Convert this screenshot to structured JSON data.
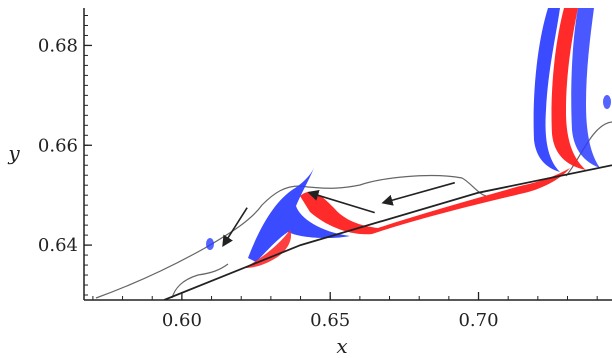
{
  "chart_data": {
    "type": "contour",
    "xlabel": "x",
    "ylabel": "y",
    "xlim": [
      0.567,
      0.745
    ],
    "ylim": [
      0.629,
      0.6875
    ],
    "x_ticks": [
      {
        "value": 0.6,
        "label": "0.60"
      },
      {
        "value": 0.65,
        "label": "0.65"
      },
      {
        "value": 0.7,
        "label": "0.70"
      }
    ],
    "y_ticks": [
      {
        "value": 0.64,
        "label": "0.64"
      },
      {
        "value": 0.66,
        "label": "0.66"
      },
      {
        "value": 0.68,
        "label": "0.68"
      }
    ],
    "colors": {
      "positive": "#ff2020",
      "negative": "#2030ff",
      "line": "#555555",
      "axis": "#222222"
    },
    "wall_line": [
      [
        0.594,
        0.629
      ],
      [
        0.64,
        0.64
      ],
      [
        0.7,
        0.6505
      ],
      [
        0.745,
        0.656
      ]
    ],
    "arrows": [
      {
        "from": [
          0.692,
          0.6525
        ],
        "to": [
          0.668,
          0.6485
        ]
      },
      {
        "from": [
          0.665,
          0.6465
        ],
        "to": [
          0.643,
          0.6505
        ]
      },
      {
        "from": [
          0.622,
          0.6475
        ],
        "to": [
          0.614,
          0.64
        ]
      }
    ]
  }
}
